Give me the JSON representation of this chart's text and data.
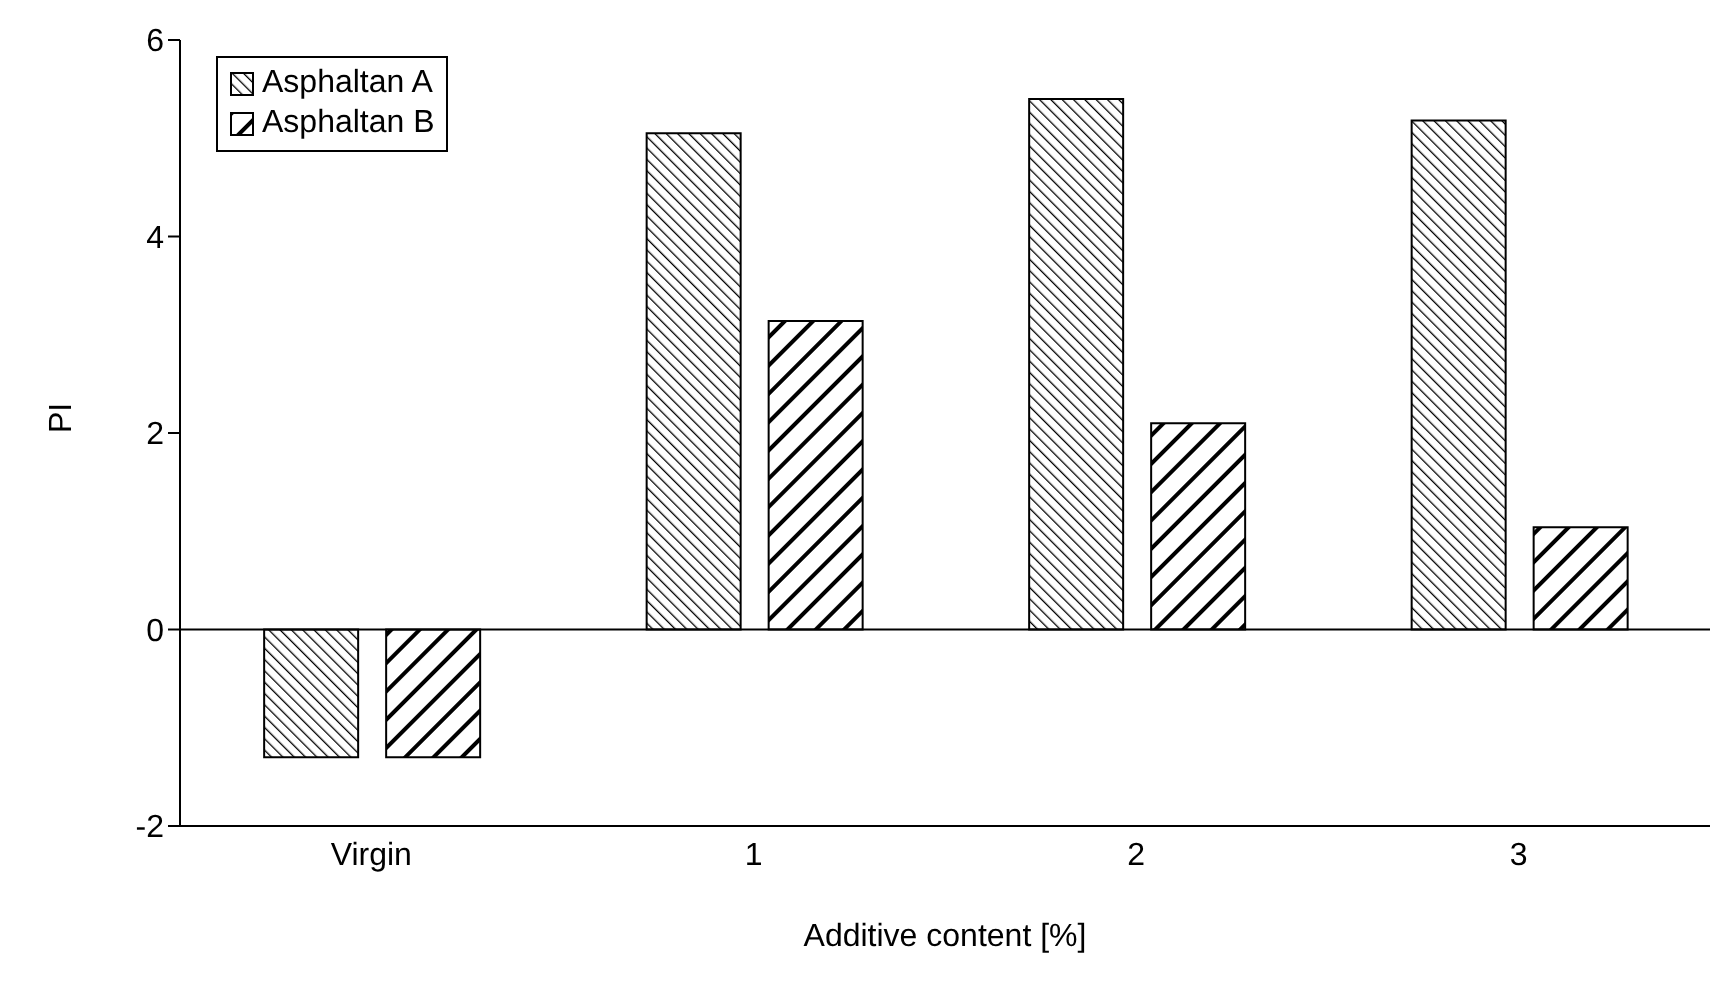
{
  "chart_data": {
    "type": "bar",
    "xlabel": "Additive content [%]",
    "ylabel": "PI",
    "categories": [
      "Virgin",
      "1",
      "2",
      "3"
    ],
    "series": [
      {
        "name": "Asphaltan A",
        "color": "#000000",
        "values": [
          -1.3,
          5.05,
          5.4,
          5.18
        ]
      },
      {
        "name": "Asphaltan B",
        "color": "#000000",
        "values": [
          -1.3,
          3.14,
          2.1,
          1.04
        ]
      }
    ],
    "ylim": [
      -2,
      6
    ],
    "yticks": [
      -2,
      0,
      2,
      4,
      6
    ],
    "grid": false,
    "ref_lines": [
      {
        "axis": "y",
        "value": 0
      }
    ],
    "legend": "top left"
  }
}
